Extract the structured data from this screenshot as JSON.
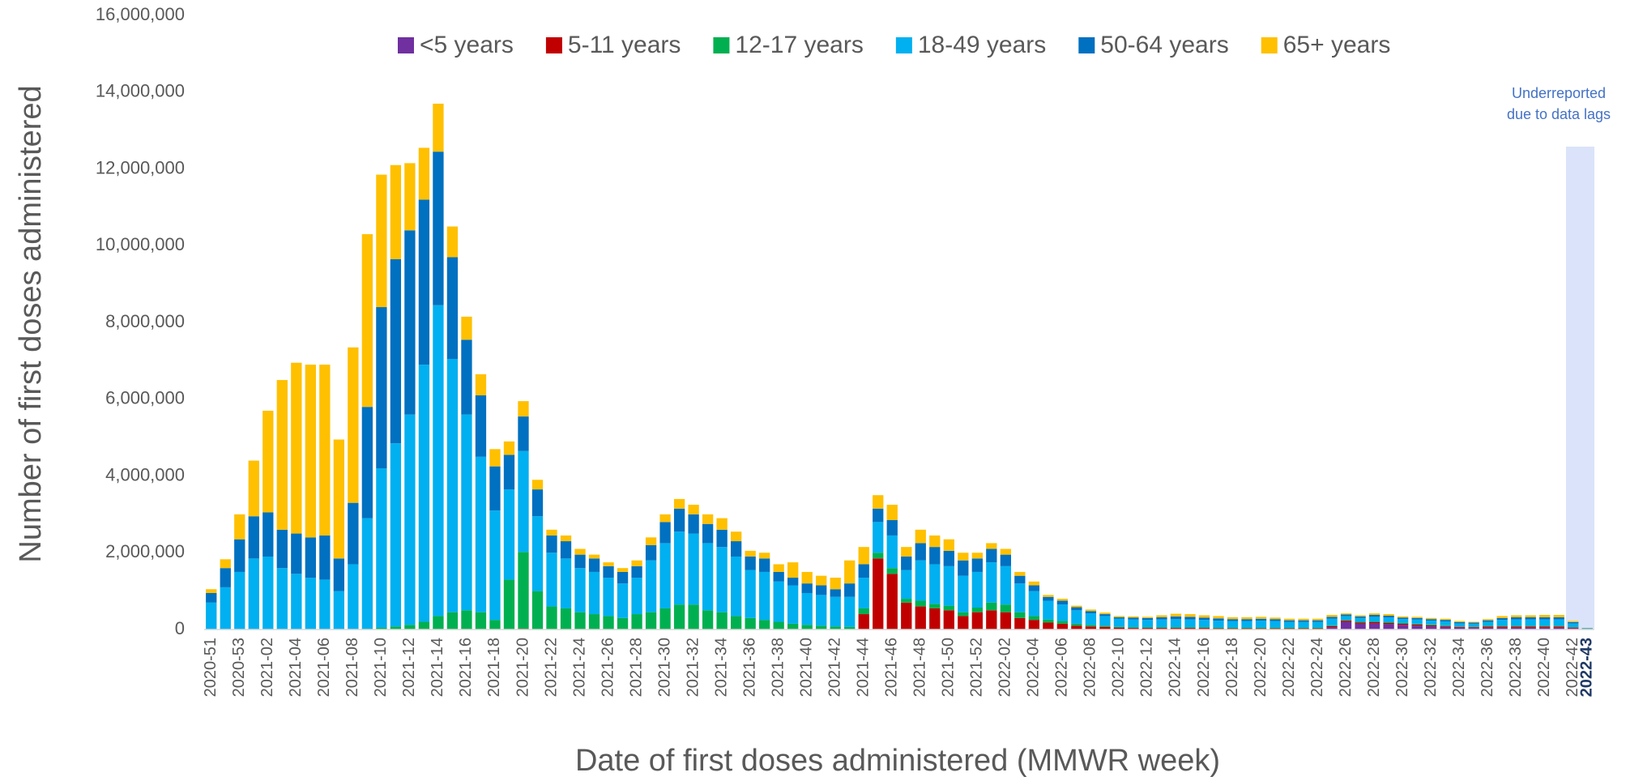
{
  "chart_data": {
    "type": "stacked_bar",
    "x_label": "Date of first doses administered (MMWR week)",
    "y_label": "Number of first doses administered",
    "annotation": [
      "Underreported",
      "due to data lags"
    ],
    "legend": "top",
    "grid": false,
    "ylim": [
      0,
      16000000
    ],
    "yticks": [
      0,
      {
        "value": 2000000,
        "label": "2,000,000"
      },
      {
        "value": 4000000,
        "label": "4,000,000"
      },
      {
        "value": 6000000,
        "label": "6,000,000"
      },
      {
        "value": 8000000,
        "label": "8,000,000"
      },
      {
        "value": 10000000,
        "label": "10,000,000"
      },
      {
        "value": 12000000,
        "label": "12,000,000"
      },
      {
        "value": 14000000,
        "label": "14,000,000"
      },
      {
        "value": 16000000,
        "label": "16,000,000"
      }
    ],
    "categories": [
      "2020-51",
      null,
      "2020-53",
      null,
      "2021-02",
      null,
      "2021-04",
      null,
      "2021-06",
      null,
      "2021-08",
      null,
      "2021-10",
      null,
      "2021-12",
      null,
      "2021-14",
      null,
      "2021-16",
      null,
      "2021-18",
      null,
      "2021-20",
      null,
      "2021-22",
      null,
      "2021-24",
      null,
      "2021-26",
      null,
      "2021-28",
      null,
      "2021-30",
      null,
      "2021-32",
      null,
      "2021-34",
      null,
      "2021-36",
      null,
      "2021-38",
      null,
      "2021-40",
      null,
      "2021-42",
      null,
      "2021-44",
      null,
      "2021-46",
      null,
      "2021-48",
      null,
      "2021-50",
      null,
      "2021-52",
      null,
      "2022-02",
      null,
      "2022-04",
      null,
      "2022-06",
      null,
      "2022-08",
      null,
      "2022-10",
      null,
      "2022-12",
      null,
      "2022-14",
      null,
      "2022-16",
      null,
      "2022-18",
      null,
      "2022-20",
      null,
      "2022-22",
      null,
      "2022-24",
      null,
      "2022-26",
      null,
      "2022-28",
      null,
      "2022-30",
      null,
      "2022-32",
      null,
      "2022-34",
      null,
      "2022-36",
      null,
      "2022-38",
      null,
      "2022-40",
      null,
      "2022-42",
      "2022-43"
    ],
    "series": [
      {
        "name": "<5 years",
        "color": "#7030a0",
        "values": [
          0,
          0,
          0,
          0,
          0,
          0,
          0,
          0,
          0,
          0,
          0,
          0,
          0,
          0,
          0,
          0,
          0,
          0,
          0,
          0,
          0,
          0,
          0,
          0,
          0,
          0,
          0,
          0,
          0,
          0,
          0,
          0,
          0,
          0,
          0,
          0,
          0,
          0,
          0,
          0,
          0,
          0,
          0,
          0,
          0,
          0,
          0,
          0,
          0,
          0,
          0,
          0,
          0,
          0,
          0,
          0,
          0,
          0,
          0,
          0,
          0,
          0,
          0,
          0,
          0,
          0,
          0,
          0,
          0,
          0,
          0,
          0,
          0,
          0,
          0,
          0,
          0,
          0,
          0,
          60000,
          200000,
          150000,
          160000,
          140000,
          120000,
          100000,
          80000,
          70000,
          50000,
          40000,
          50000,
          50000,
          50000,
          50000,
          50000,
          50000,
          30000,
          10000
        ]
      },
      {
        "name": "5-11 years",
        "color": "#c00000",
        "values": [
          0,
          0,
          0,
          0,
          0,
          0,
          0,
          0,
          0,
          0,
          0,
          0,
          0,
          0,
          0,
          0,
          0,
          0,
          0,
          0,
          0,
          0,
          20000,
          0,
          0,
          0,
          0,
          0,
          0,
          0,
          0,
          0,
          0,
          0,
          0,
          0,
          0,
          0,
          0,
          0,
          0,
          0,
          0,
          0,
          0,
          0,
          400000,
          1850000,
          1450000,
          700000,
          600000,
          550000,
          500000,
          350000,
          450000,
          500000,
          450000,
          300000,
          250000,
          180000,
          150000,
          100000,
          80000,
          70000,
          50000,
          40000,
          40000,
          40000,
          40000,
          40000,
          40000,
          30000,
          30000,
          30000,
          30000,
          30000,
          30000,
          30000,
          30000,
          30000,
          30000,
          30000,
          30000,
          30000,
          30000,
          30000,
          30000,
          20000,
          20000,
          20000,
          30000,
          30000,
          30000,
          30000,
          30000,
          30000,
          20000,
          5000
        ]
      },
      {
        "name": "12-17 years",
        "color": "#00b050",
        "values": [
          0,
          0,
          0,
          0,
          0,
          0,
          0,
          0,
          0,
          0,
          0,
          20000,
          50000,
          80000,
          120000,
          200000,
          350000,
          450000,
          500000,
          450000,
          250000,
          1300000,
          2000000,
          1000000,
          600000,
          550000,
          450000,
          400000,
          350000,
          300000,
          400000,
          450000,
          550000,
          650000,
          650000,
          500000,
          450000,
          350000,
          300000,
          250000,
          200000,
          150000,
          120000,
          100000,
          80000,
          70000,
          150000,
          150000,
          150000,
          100000,
          150000,
          120000,
          120000,
          100000,
          120000,
          200000,
          200000,
          150000,
          100000,
          80000,
          70000,
          50000,
          40000,
          30000,
          20000,
          20000,
          20000,
          20000,
          20000,
          20000,
          20000,
          20000,
          20000,
          20000,
          20000,
          20000,
          20000,
          20000,
          20000,
          20000,
          20000,
          20000,
          20000,
          20000,
          20000,
          20000,
          20000,
          20000,
          10000,
          10000,
          20000,
          20000,
          20000,
          20000,
          20000,
          20000,
          10000,
          3000
        ]
      },
      {
        "name": "18-49 years",
        "color": "#00b0f0",
        "values": [
          700000,
          1100000,
          1500000,
          1850000,
          1900000,
          1600000,
          1450000,
          1350000,
          1300000,
          1000000,
          1700000,
          2880000,
          4150000,
          4770000,
          5480000,
          6700000,
          8100000,
          6600000,
          5100000,
          4050000,
          2850000,
          2350000,
          2630000,
          1950000,
          1400000,
          1300000,
          1150000,
          1100000,
          1000000,
          900000,
          950000,
          1350000,
          1700000,
          1900000,
          1850000,
          1750000,
          1700000,
          1550000,
          1250000,
          1250000,
          1050000,
          1000000,
          830000,
          800000,
          770000,
          780000,
          800000,
          800000,
          850000,
          750000,
          1050000,
          1030000,
          1030000,
          950000,
          930000,
          1050000,
          1000000,
          750000,
          650000,
          490000,
          430000,
          350000,
          300000,
          250000,
          210000,
          200000,
          190000,
          200000,
          210000,
          200000,
          190000,
          180000,
          170000,
          170000,
          180000,
          170000,
          150000,
          150000,
          150000,
          170000,
          100000,
          100000,
          120000,
          120000,
          100000,
          110000,
          100000,
          100000,
          80000,
          80000,
          100000,
          150000,
          160000,
          160000,
          160000,
          160000,
          100000,
          15000
        ]
      },
      {
        "name": "50-64 years",
        "color": "#0070c0",
        "values": [
          250000,
          500000,
          850000,
          1100000,
          1150000,
          1000000,
          1050000,
          1050000,
          1150000,
          850000,
          1600000,
          2900000,
          4200000,
          4800000,
          4800000,
          4300000,
          4000000,
          2650000,
          1950000,
          1600000,
          1150000,
          900000,
          900000,
          700000,
          450000,
          450000,
          350000,
          350000,
          300000,
          300000,
          300000,
          400000,
          550000,
          600000,
          500000,
          500000,
          450000,
          400000,
          350000,
          350000,
          250000,
          200000,
          250000,
          250000,
          200000,
          350000,
          350000,
          350000,
          400000,
          350000,
          450000,
          450000,
          400000,
          400000,
          350000,
          350000,
          300000,
          200000,
          150000,
          100000,
          100000,
          80000,
          60000,
          50000,
          40000,
          50000,
          50000,
          60000,
          70000,
          70000,
          60000,
          60000,
          50000,
          50000,
          50000,
          50000,
          40000,
          40000,
          40000,
          50000,
          40000,
          40000,
          50000,
          50000,
          40000,
          40000,
          40000,
          40000,
          30000,
          30000,
          40000,
          50000,
          60000,
          60000,
          60000,
          60000,
          30000,
          5000
        ]
      },
      {
        "name": "65+ years",
        "color": "#ffc000",
        "values": [
          100000,
          230000,
          650000,
          1450000,
          2650000,
          3900000,
          4450000,
          4500000,
          4450000,
          3100000,
          4050000,
          4500000,
          3450000,
          2450000,
          1750000,
          1350000,
          1250000,
          800000,
          600000,
          550000,
          450000,
          350000,
          400000,
          250000,
          150000,
          150000,
          150000,
          100000,
          100000,
          100000,
          150000,
          200000,
          200000,
          250000,
          250000,
          250000,
          300000,
          250000,
          150000,
          150000,
          200000,
          400000,
          300000,
          250000,
          300000,
          600000,
          450000,
          350000,
          400000,
          250000,
          350000,
          300000,
          300000,
          200000,
          150000,
          150000,
          150000,
          100000,
          100000,
          50000,
          50000,
          40000,
          40000,
          40000,
          30000,
          30000,
          30000,
          50000,
          70000,
          70000,
          60000,
          60000,
          50000,
          50000,
          50000,
          40000,
          40000,
          40000,
          40000,
          50000,
          30000,
          30000,
          40000,
          40000,
          30000,
          30000,
          30000,
          30000,
          30000,
          20000,
          30000,
          50000,
          50000,
          50000,
          60000,
          60000,
          30000,
          5000
        ]
      }
    ]
  }
}
